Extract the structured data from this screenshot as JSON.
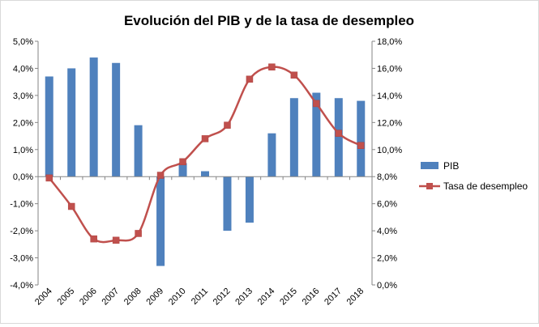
{
  "chart_data": {
    "type": "bar+line",
    "title": "Evolución del PIB y de la tasa de desempleo",
    "categories": [
      "2004",
      "2005",
      "2006",
      "2007",
      "2008",
      "2009",
      "2010",
      "2011",
      "2012",
      "2013",
      "2014",
      "2015",
      "2016",
      "2017",
      "2018"
    ],
    "series": [
      {
        "name": "PIB",
        "type": "bar",
        "axis": "left",
        "color": "#4f81bd",
        "values": [
          3.7,
          4.0,
          4.4,
          4.2,
          1.9,
          -3.3,
          0.5,
          0.2,
          -2.0,
          -1.7,
          1.6,
          2.9,
          3.1,
          2.9,
          2.8
        ]
      },
      {
        "name": "Tasa de desempleo",
        "type": "line",
        "axis": "right",
        "color": "#c0504d",
        "marker": "square",
        "values": [
          7.9,
          5.8,
          3.4,
          3.3,
          3.8,
          8.1,
          9.1,
          10.8,
          11.8,
          15.2,
          16.1,
          15.5,
          13.4,
          11.2,
          10.3
        ]
      }
    ],
    "y_left": {
      "min": -4.0,
      "max": 5.0,
      "step": 1.0,
      "ticks": [
        "5,0%",
        "4,0%",
        "3,0%",
        "2,0%",
        "1,0%",
        "0,0%",
        "-1,0%",
        "-2,0%",
        "-3,0%",
        "-4,0%"
      ]
    },
    "y_right": {
      "min": 0.0,
      "max": 18.0,
      "step": 2.0,
      "ticks": [
        "18,0%",
        "16,0%",
        "14,0%",
        "12,0%",
        "10,0%",
        "8,0%",
        "6,0%",
        "4,0%",
        "2,0%",
        "0,0%"
      ]
    },
    "grid": false,
    "legend_position": "right"
  }
}
